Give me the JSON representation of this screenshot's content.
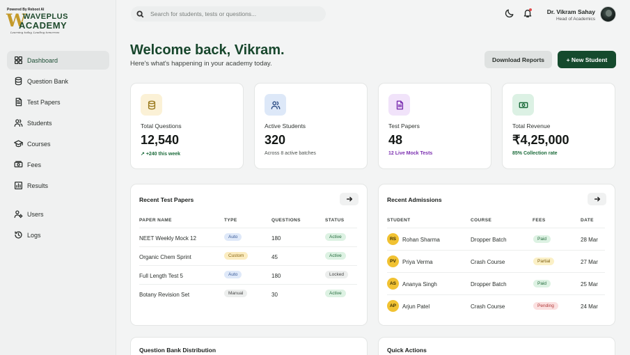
{
  "brand": {
    "powered": "Powered By Reboot AI",
    "mark": "W",
    "name_top": "WAVEPLUS",
    "name_bottom": "ACADEMY",
    "tagline": "Learning today,          Leading tomorrow"
  },
  "sidebar": {
    "items": [
      {
        "label": "Dashboard",
        "icon": "dashboard-icon",
        "active": true
      },
      {
        "label": "Question Bank",
        "icon": "database-icon"
      },
      {
        "label": "Test Papers",
        "icon": "document-icon"
      },
      {
        "label": "Students",
        "icon": "users-icon"
      },
      {
        "label": "Courses",
        "icon": "graduation-cap-icon"
      },
      {
        "label": "Fees",
        "icon": "money-icon"
      },
      {
        "label": "Results",
        "icon": "bar-chart-icon"
      },
      {
        "label": "Users",
        "icon": "user-cog-icon"
      },
      {
        "label": "Logs",
        "icon": "history-icon"
      }
    ]
  },
  "header": {
    "search_placeholder": "Search for students, tests or questions...",
    "user_name": "Dr. Vikram Sahay",
    "user_role": "Head of Academics"
  },
  "welcome": {
    "title": "Welcome back, Vikram.",
    "subtitle": "Here's what's happening in your academy today.",
    "download_label": "Download Reports",
    "new_student_label": "+ New Student"
  },
  "stats": [
    {
      "label": "Total Questions",
      "value": "12,540",
      "note": "+240 this week",
      "icon": "database-icon",
      "color": "#1b6b3a",
      "icon_bg": "#fbf1d6",
      "icon_stroke": "#9a7a1e"
    },
    {
      "label": "Active Students",
      "value": "320",
      "note": "Across 8 active batches",
      "icon": "users-icon",
      "color": "#4a4f4c",
      "icon_bg": "#dde8f8",
      "icon_stroke": "#2f4f86"
    },
    {
      "label": "Test Papers",
      "value": "48",
      "note": "12 Live Mock Tests",
      "icon": "document-icon",
      "color": "#7b2fb0",
      "icon_bg": "#f1e3fa",
      "icon_stroke": "#7b2fb0"
    },
    {
      "label": "Total Revenue",
      "value": "₹4,25,000",
      "note": "85% Collection rate",
      "icon": "money-icon",
      "color": "#1b6b3a",
      "icon_bg": "#dcf1e4",
      "icon_stroke": "#1b6b3a"
    }
  ],
  "recent_tests": {
    "title": "Recent Test Papers",
    "headers": [
      "PAPER NAME",
      "TYPE",
      "QUESTIONS",
      "STATUS"
    ],
    "rows": [
      {
        "name": "NEET Weekly Mock 12",
        "type": "Auto",
        "questions": "180",
        "status": "Active"
      },
      {
        "name": "Organic Chem Sprint",
        "type": "Custom",
        "questions": "45",
        "status": "Active"
      },
      {
        "name": "Full Length Test 5",
        "type": "Auto",
        "questions": "180",
        "status": "Locked"
      },
      {
        "name": "Botany Revision Set",
        "type": "Manual",
        "questions": "30",
        "status": "Active"
      }
    ]
  },
  "recent_admissions": {
    "title": "Recent Admissions",
    "headers": [
      "STUDENT",
      "COURSE",
      "FEES",
      "DATE"
    ],
    "rows": [
      {
        "initials": "RS",
        "name": "Rohan Sharma",
        "course": "Dropper Batch",
        "fees": "Paid",
        "date": "28 Mar"
      },
      {
        "initials": "PV",
        "name": "Priya Verma",
        "course": "Crash Course",
        "fees": "Partial",
        "date": "27 Mar"
      },
      {
        "initials": "AS",
        "name": "Ananya Singh",
        "course": "Dropper Batch",
        "fees": "Paid",
        "date": "25 Mar"
      },
      {
        "initials": "AP",
        "name": "Arjun Patel",
        "course": "Crash Course",
        "fees": "Pending",
        "date": "24 Mar"
      }
    ]
  },
  "bottom": {
    "distribution_title": "Question Bank Distribution",
    "quick_actions_title": "Quick Actions"
  }
}
